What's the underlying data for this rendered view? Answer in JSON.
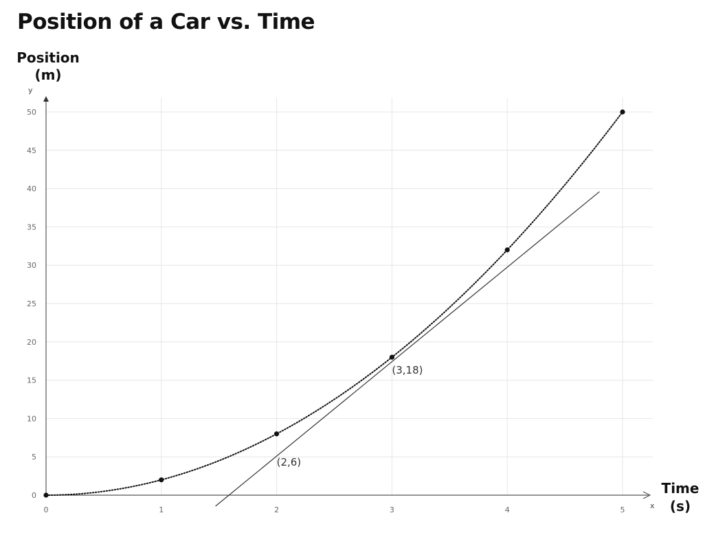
{
  "chart_data": {
    "type": "scatter",
    "title": "Position of a Car vs. Time",
    "ylabel_line1": "Position",
    "ylabel_line2": "(m)",
    "xlabel_line1": "Time",
    "xlabel_line2": "(s)",
    "x_axis_letter": "x",
    "y_axis_letter": "y",
    "xlim": [
      0,
      5
    ],
    "ylim": [
      0,
      50
    ],
    "x_ticks": [
      0,
      1,
      2,
      3,
      4,
      5
    ],
    "y_ticks": [
      0,
      5,
      10,
      15,
      20,
      25,
      30,
      35,
      40,
      45,
      50
    ],
    "grid": true,
    "series": [
      {
        "style": "points with dotted curve",
        "color": "#111111",
        "points": [
          {
            "x": 0,
            "y": 0
          },
          {
            "x": 1,
            "y": 2
          },
          {
            "x": 2,
            "y": 8
          },
          {
            "x": 3,
            "y": 18
          },
          {
            "x": 4,
            "y": 32
          },
          {
            "x": 5,
            "y": 50
          }
        ]
      }
    ],
    "tangent_line": {
      "color": "#333333",
      "slope": 12,
      "intercept": -18,
      "x_range": [
        1.47,
        4.8
      ]
    },
    "annotations": [
      {
        "text": "(3,18)",
        "x": 3,
        "y": 18
      },
      {
        "text": "(2,6)",
        "x": 2,
        "y": 6
      }
    ]
  }
}
